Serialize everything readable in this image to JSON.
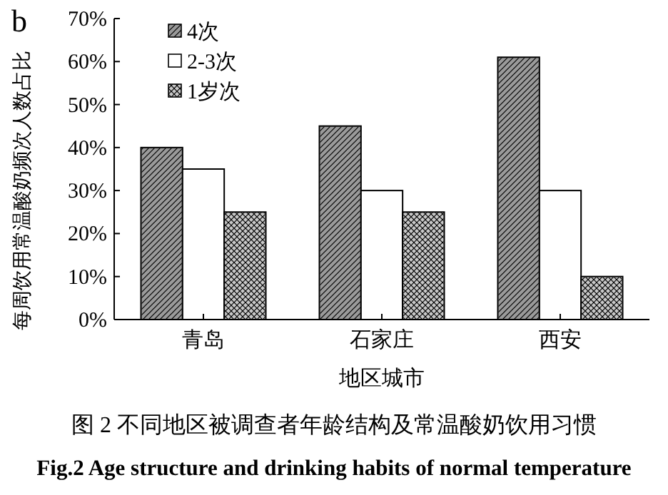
{
  "chart_data": {
    "type": "bar",
    "title": "图 2 不同地区被调查者年龄结构及常温酸奶饮用习惯",
    "subtitle": "Fig.2 Age structure and drinking habits of normal temperature",
    "xlabel": "地区城市",
    "ylabel": "每周饮用常温酸奶频次人数占比",
    "annotations": [
      "b"
    ],
    "categories": [
      "青岛",
      "石家庄",
      "西安"
    ],
    "series": [
      {
        "name": "4次",
        "color": "#9a9a9a",
        "values": [
          40,
          45,
          61
        ]
      },
      {
        "name": "2-3次",
        "color": "#ffffff",
        "values": [
          35,
          30,
          30
        ]
      },
      {
        "name": "1岁次",
        "color": "#c8c8c8",
        "values": [
          25,
          25,
          10
        ]
      }
    ],
    "ylim": [
      0,
      70
    ],
    "yticks": [
      {
        "value": 0,
        "label": "0%"
      },
      {
        "value": 10,
        "label": "10%"
      },
      {
        "value": 20,
        "label": "20%"
      },
      {
        "value": 30,
        "label": "30%"
      },
      {
        "value": 40,
        "label": "40%"
      },
      {
        "value": 50,
        "label": "50%"
      },
      {
        "value": 60,
        "label": "60%"
      },
      {
        "value": 70,
        "label": "70%"
      }
    ],
    "legend": "top left",
    "grid": false
  }
}
